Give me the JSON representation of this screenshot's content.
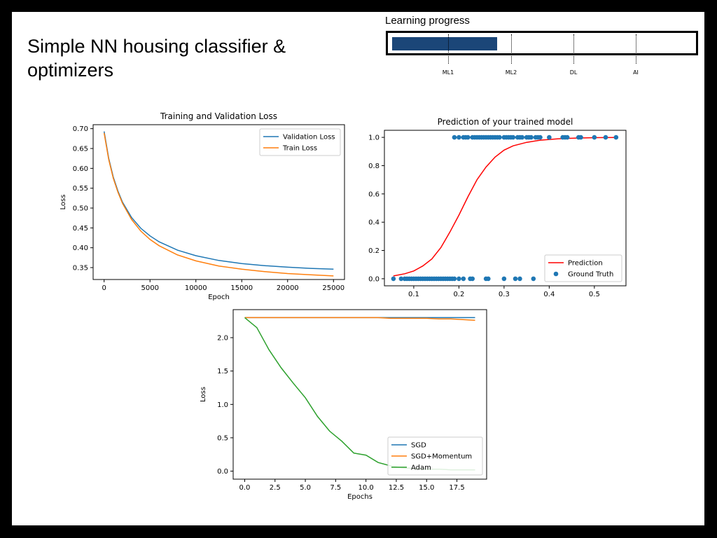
{
  "slide": {
    "title": "Simple NN housing classifier & optimizers"
  },
  "progress": {
    "label": "Learning progress",
    "fill_fraction": 0.35,
    "fill_color": "#1b4678",
    "milestones": [
      "ML1",
      "ML2",
      "DL",
      "AI"
    ]
  },
  "chart_data": [
    {
      "type": "line",
      "title": "Training and Validation Loss",
      "xlabel": "Epoch",
      "ylabel": "Loss",
      "xlim": [
        -1200,
        26200
      ],
      "ylim": [
        0.32,
        0.71
      ],
      "xticks": [
        0,
        5000,
        10000,
        15000,
        20000,
        25000
      ],
      "yticks": [
        0.35,
        0.4,
        0.45,
        0.5,
        0.55,
        0.6,
        0.65,
        0.7
      ],
      "ytick_labels": [
        "0.35",
        "0.40",
        "0.45",
        "0.50",
        "0.55",
        "0.60",
        "0.65",
        "0.70"
      ],
      "legend": "top-right",
      "series": [
        {
          "name": "Validation Loss",
          "color": "#1f77b4",
          "x": [
            0,
            500,
            1000,
            1500,
            2000,
            3000,
            4000,
            5000,
            6000,
            8000,
            10000,
            12500,
            15000,
            17500,
            20000,
            22500,
            25000
          ],
          "values": [
            0.693,
            0.625,
            0.578,
            0.543,
            0.515,
            0.476,
            0.449,
            0.43,
            0.415,
            0.394,
            0.38,
            0.368,
            0.36,
            0.355,
            0.351,
            0.348,
            0.346
          ]
        },
        {
          "name": "Train Loss",
          "color": "#ff7f0e",
          "x": [
            0,
            500,
            1000,
            1500,
            2000,
            3000,
            4000,
            5000,
            6000,
            8000,
            10000,
            12500,
            15000,
            17500,
            20000,
            22500,
            25000
          ],
          "values": [
            0.689,
            0.622,
            0.575,
            0.54,
            0.512,
            0.471,
            0.442,
            0.421,
            0.405,
            0.382,
            0.367,
            0.354,
            0.346,
            0.34,
            0.335,
            0.332,
            0.329
          ]
        }
      ]
    },
    {
      "type": "scatter",
      "title": "Prediction of your trained model",
      "xlim": [
        0.035,
        0.57
      ],
      "ylim": [
        -0.05,
        1.05
      ],
      "xticks": [
        0.1,
        0.2,
        0.3,
        0.4,
        0.5
      ],
      "xtick_labels": [
        "0.1",
        "0.2",
        "0.3",
        "0.4",
        "0.5"
      ],
      "yticks": [
        0.0,
        0.2,
        0.4,
        0.6,
        0.8,
        1.0
      ],
      "ytick_labels": [
        "0.0",
        "0.2",
        "0.4",
        "0.6",
        "0.8",
        "1.0"
      ],
      "legend": "bottom-right",
      "series": [
        {
          "name": "Prediction",
          "type": "line",
          "color": "#ff0000",
          "x": [
            0.055,
            0.08,
            0.1,
            0.12,
            0.14,
            0.16,
            0.18,
            0.2,
            0.22,
            0.24,
            0.26,
            0.28,
            0.3,
            0.32,
            0.35,
            0.38,
            0.42,
            0.46,
            0.5,
            0.55
          ],
          "values": [
            0.02,
            0.035,
            0.055,
            0.09,
            0.14,
            0.22,
            0.33,
            0.45,
            0.58,
            0.7,
            0.79,
            0.86,
            0.91,
            0.94,
            0.965,
            0.98,
            0.99,
            0.995,
            0.998,
            0.999
          ]
        },
        {
          "name": "Ground Truth",
          "type": "scatter",
          "color": "#1f77b4",
          "points": [
            [
              0.055,
              0
            ],
            [
              0.072,
              0
            ],
            [
              0.08,
              0
            ],
            [
              0.085,
              0
            ],
            [
              0.09,
              0
            ],
            [
              0.095,
              0
            ],
            [
              0.1,
              0
            ],
            [
              0.105,
              0
            ],
            [
              0.11,
              0
            ],
            [
              0.115,
              0
            ],
            [
              0.12,
              0
            ],
            [
              0.125,
              0
            ],
            [
              0.13,
              0
            ],
            [
              0.135,
              0
            ],
            [
              0.14,
              0
            ],
            [
              0.145,
              0
            ],
            [
              0.15,
              0
            ],
            [
              0.155,
              0
            ],
            [
              0.16,
              0
            ],
            [
              0.165,
              0
            ],
            [
              0.17,
              0
            ],
            [
              0.175,
              0
            ],
            [
              0.18,
              0
            ],
            [
              0.185,
              0
            ],
            [
              0.19,
              0
            ],
            [
              0.2,
              0
            ],
            [
              0.21,
              0
            ],
            [
              0.225,
              0
            ],
            [
              0.23,
              0
            ],
            [
              0.26,
              0
            ],
            [
              0.265,
              0
            ],
            [
              0.3,
              0
            ],
            [
              0.325,
              0
            ],
            [
              0.335,
              0
            ],
            [
              0.365,
              0
            ],
            [
              0.19,
              1
            ],
            [
              0.2,
              1
            ],
            [
              0.21,
              1
            ],
            [
              0.215,
              1
            ],
            [
              0.22,
              1
            ],
            [
              0.23,
              1
            ],
            [
              0.235,
              1
            ],
            [
              0.24,
              1
            ],
            [
              0.245,
              1
            ],
            [
              0.25,
              1
            ],
            [
              0.255,
              1
            ],
            [
              0.26,
              1
            ],
            [
              0.265,
              1
            ],
            [
              0.27,
              1
            ],
            [
              0.275,
              1
            ],
            [
              0.28,
              1
            ],
            [
              0.285,
              1
            ],
            [
              0.29,
              1
            ],
            [
              0.3,
              1
            ],
            [
              0.305,
              1
            ],
            [
              0.31,
              1
            ],
            [
              0.315,
              1
            ],
            [
              0.32,
              1
            ],
            [
              0.33,
              1
            ],
            [
              0.335,
              1
            ],
            [
              0.34,
              1
            ],
            [
              0.35,
              1
            ],
            [
              0.355,
              1
            ],
            [
              0.36,
              1
            ],
            [
              0.37,
              1
            ],
            [
              0.375,
              1
            ],
            [
              0.38,
              1
            ],
            [
              0.4,
              1
            ],
            [
              0.43,
              1
            ],
            [
              0.435,
              1
            ],
            [
              0.44,
              1
            ],
            [
              0.465,
              1
            ],
            [
              0.47,
              1
            ],
            [
              0.5,
              1
            ],
            [
              0.525,
              1
            ],
            [
              0.548,
              1
            ]
          ]
        }
      ]
    },
    {
      "type": "line",
      "title": "",
      "xlabel": "Epochs",
      "ylabel": "Loss",
      "xlim": [
        -0.95,
        19.95
      ],
      "ylim": [
        -0.12,
        2.42
      ],
      "xticks": [
        0,
        2.5,
        5,
        7.5,
        10,
        12.5,
        15,
        17.5
      ],
      "xtick_labels": [
        "0.0",
        "2.5",
        "5.0",
        "7.5",
        "10.0",
        "12.5",
        "15.0",
        "17.5"
      ],
      "yticks": [
        0,
        0.5,
        1.0,
        1.5,
        2.0
      ],
      "ytick_labels": [
        "0.0",
        "0.5",
        "1.0",
        "1.5",
        "2.0"
      ],
      "legend": "bottom-right",
      "series": [
        {
          "name": "SGD",
          "color": "#1f77b4",
          "x": [
            0,
            1,
            2,
            3,
            4,
            5,
            6,
            7,
            8,
            9,
            10,
            11,
            12,
            13,
            14,
            15,
            16,
            17,
            18,
            19
          ],
          "values": [
            2.3,
            2.3,
            2.3,
            2.3,
            2.3,
            2.3,
            2.3,
            2.3,
            2.3,
            2.3,
            2.3,
            2.3,
            2.3,
            2.3,
            2.3,
            2.3,
            2.3,
            2.3,
            2.3,
            2.3
          ]
        },
        {
          "name": "SGD+Momentum",
          "color": "#ff7f0e",
          "x": [
            0,
            1,
            2,
            3,
            4,
            5,
            6,
            7,
            8,
            9,
            10,
            11,
            12,
            13,
            14,
            15,
            16,
            17,
            18,
            19
          ],
          "values": [
            2.3,
            2.3,
            2.3,
            2.3,
            2.3,
            2.3,
            2.3,
            2.3,
            2.3,
            2.3,
            2.3,
            2.3,
            2.29,
            2.29,
            2.29,
            2.29,
            2.28,
            2.28,
            2.27,
            2.26
          ]
        },
        {
          "name": "Adam",
          "color": "#2ca02c",
          "x": [
            0,
            1,
            2,
            3,
            4,
            5,
            6,
            7,
            8,
            9,
            10,
            11,
            12,
            13,
            14,
            15,
            16,
            17,
            18,
            19
          ],
          "values": [
            2.3,
            2.15,
            1.82,
            1.55,
            1.32,
            1.1,
            0.82,
            0.6,
            0.45,
            0.27,
            0.24,
            0.13,
            0.08,
            0.05,
            0.04,
            0.03,
            0.03,
            0.02,
            0.02,
            0.02
          ]
        }
      ]
    }
  ]
}
